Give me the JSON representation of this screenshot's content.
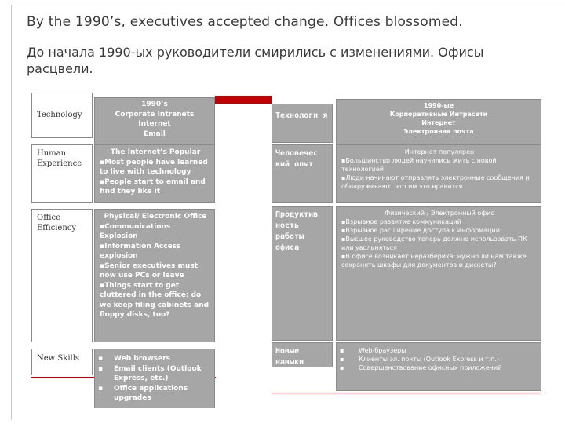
{
  "title": "By the 1990’s, executives accepted change. Offices blossomed.",
  "subtitle": "До начала 1990-ых руководители смирились с изменениями. Офисы расцвели.",
  "english_table": {
    "header": {
      "label": "Technology",
      "lines": [
        "1990’s",
        "Corporate Intranets",
        "Internet",
        "Email"
      ]
    },
    "rows": [
      {
        "label": "Human Experience",
        "title": "The Internet’s Popular",
        "lines": [
          "▪Most people have learned to live with technology",
          "▪People start to email and find they like it"
        ]
      },
      {
        "label": "Office Efficiency",
        "title": "Physical/ Electronic Office",
        "lines": [
          "▪Communications Explosion",
          "▪Information Access explosion",
          "▪Senior executives must now use PCs or leave",
          "▪Things start to get cluttered in the office: do we keep filing cabinets and floppy disks, too?"
        ]
      },
      {
        "label": "New Skills",
        "title": "",
        "lines": [
          "Web browsers",
          "Email clients (Outlook Express, etc.)",
          "Office applications upgrades"
        ]
      }
    ]
  },
  "russian_table": {
    "header": {
      "label": "Технологи я",
      "lines": [
        "1990-ые",
        "Корпоративные Интрасети",
        "Интернет",
        "Электронная почта"
      ]
    },
    "rows": [
      {
        "label": "Человечес кий опыт",
        "title": "Интернет популярен",
        "lines": [
          "▪Большинство людей научились жить с новой технологией",
          "▪Люди начинают отправлять электронные сообщения и обнаруживают, что им это нравится"
        ]
      },
      {
        "label": "Продуктив ность работы офиса",
        "title": "Физический / Электронный офис",
        "lines": [
          "▪Взрывное развитие коммуникаций",
          "▪Взрывное расширение доступа к информации",
          "▪Высшее руководство теперь должно использовать ПК или увольняться",
          "▪В офисе возникает неразбериха: нужно ли нам также сохранять шкафы для документов и дискеты?"
        ]
      },
      {
        "label": "Новые навыки",
        "title": "",
        "lines": [
          "Web-браузеры",
          "Клиенты эл. почты (Outlook Express и т.п.)",
          "Совершенствование офисных приложений"
        ]
      }
    ]
  }
}
